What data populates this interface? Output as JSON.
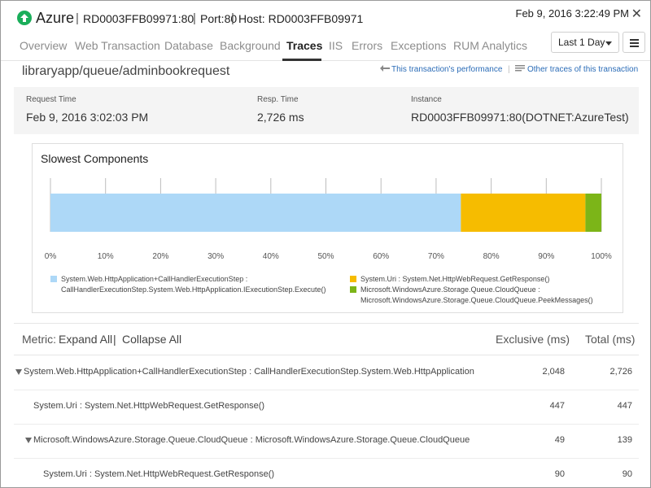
{
  "header": {
    "app_name": "Azure",
    "monitor_name": "RD0003FFB09971:80",
    "port_label": "Port:",
    "port_value": "80",
    "host_label": "Host:",
    "host_value": "RD0003FFB09971",
    "separator": "|",
    "timestamp": "Feb 9, 2016 3:22:49 PM",
    "close_glyph": "✕"
  },
  "tabs": [
    {
      "label": "Overview",
      "active": false
    },
    {
      "label": "Web Transaction",
      "active": false
    },
    {
      "label": "Database",
      "active": false
    },
    {
      "label": "Background",
      "active": false
    },
    {
      "label": "Traces",
      "active": true
    },
    {
      "label": "IIS",
      "active": false
    },
    {
      "label": "Errors",
      "active": false
    },
    {
      "label": "Exceptions",
      "active": false
    },
    {
      "label": "RUM Analytics",
      "active": false
    }
  ],
  "time_range": {
    "selected": "Last 1 Day"
  },
  "trace": {
    "title": "libraryapp/queue/adminbookrequest",
    "link_perf": "This transaction's performance",
    "link_other": "Other traces of this transaction",
    "link_separator": "|"
  },
  "info": {
    "request_time_label": "Request Time",
    "request_time_value": "Feb 9, 2016 3:02:03 PM",
    "resp_time_label": "Resp. Time",
    "resp_time_value": "2,726 ms",
    "instance_label": "Instance",
    "instance_value": "RD0003FFB09971:80(DOTNET:AzureTest)"
  },
  "chart_data": {
    "type": "bar",
    "title": "Slowest Components",
    "orientation": "horizontal-stacked",
    "xlim": [
      0,
      100
    ],
    "ticks": [
      "0%",
      "10%",
      "20%",
      "30%",
      "40%",
      "50%",
      "60%",
      "70%",
      "80%",
      "90%",
      "100%"
    ],
    "series": [
      {
        "name": "System.Web.HttpApplication+CallHandlerExecutionStep : CallHandlerExecutionStep.System.Web.HttpApplication.IExecutionStep.Execute()",
        "value": 74.5,
        "color": "#add8f7"
      },
      {
        "name": "System.Uri : System.Net.HttpWebRequest.GetResponse()",
        "value": 22.6,
        "color": "#f6bc00"
      },
      {
        "name": "Microsoft.WindowsAzure.Storage.Queue.CloudQueue : Microsoft.WindowsAzure.Storage.Queue.CloudQueue.PeekMessages()",
        "value": 2.9,
        "color": "#7cb518"
      }
    ],
    "grid": true,
    "legend_position": "bottom"
  },
  "tree": {
    "metric_label": "Metric:",
    "expand_all": "Expand All",
    "collapse_sep": "|",
    "collapse_all": "Collapse All",
    "col_exclusive": "Exclusive (ms)",
    "col_total": "Total (ms)",
    "rows": [
      {
        "name": "System.Web.HttpApplication+CallHandlerExecutionStep : CallHandlerExecutionStep.System.Web.HttpApplication",
        "exclusive": "2,048",
        "total": "2,726",
        "expandable": true
      },
      {
        "name": "System.Uri : System.Net.HttpWebRequest.GetResponse()",
        "exclusive": "447",
        "total": "447",
        "expandable": false
      },
      {
        "name": "Microsoft.WindowsAzure.Storage.Queue.CloudQueue : Microsoft.WindowsAzure.Storage.Queue.CloudQueue",
        "exclusive": "49",
        "total": "139",
        "expandable": true
      },
      {
        "name": "System.Uri : System.Net.HttpWebRequest.GetResponse()",
        "exclusive": "90",
        "total": "90",
        "expandable": false
      }
    ]
  }
}
